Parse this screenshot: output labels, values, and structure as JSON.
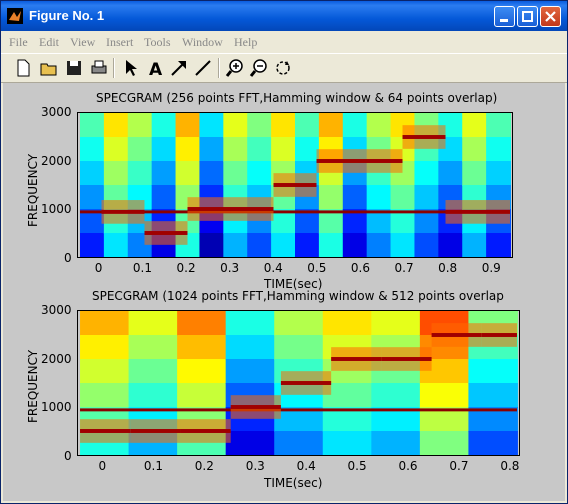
{
  "window": {
    "title": "Figure No. 1"
  },
  "menu": [
    "File",
    "Edit",
    "View",
    "Insert",
    "Tools",
    "Window",
    "Help"
  ],
  "toolbar": [
    "new-figure",
    "open",
    "save",
    "print",
    "edit-plot",
    "insert-text",
    "insert-arrow",
    "insert-line",
    "zoom-in",
    "zoom-out",
    "rotate-3d"
  ],
  "chart_data": [
    {
      "type": "heatmap",
      "title": "SPECGRAM (256 points FFT,Hamming window & 64 points overlap)",
      "xlabel": "TIME(sec)",
      "ylabel": "FREQUENCY",
      "xlim": [
        -0.05,
        0.95
      ],
      "ylim": [
        0,
        3000
      ],
      "xticks": [
        "0",
        "0.1",
        "0.2",
        "0.3",
        "0.4",
        "0.5",
        "0.6",
        "0.7",
        "0.8",
        "0.9"
      ],
      "yticks": [
        "0",
        "1000",
        "2000",
        "3000"
      ],
      "segments": [
        {
          "start": 0.0,
          "end": 0.1,
          "freq": 940
        },
        {
          "start": 0.1,
          "end": 0.2,
          "freq": 500
        },
        {
          "start": 0.2,
          "end": 0.3,
          "freq": 1000
        },
        {
          "start": 0.3,
          "end": 0.4,
          "freq": 1000
        },
        {
          "start": 0.4,
          "end": 0.5,
          "freq": 1500
        },
        {
          "start": 0.5,
          "end": 0.6,
          "freq": 2000
        },
        {
          "start": 0.6,
          "end": 0.7,
          "freq": 2000
        },
        {
          "start": 0.7,
          "end": 0.8,
          "freq": 2500
        },
        {
          "start": 0.8,
          "end": 0.95,
          "freq": 940
        }
      ],
      "background_tone_hz": 940
    },
    {
      "type": "heatmap",
      "title": "SPECGRAM (1024 points FFT,Hamming window & 512 points overlap",
      "xlabel": "TIME(sec)",
      "ylabel": "FREQUENCY",
      "xlim": [
        -0.05,
        0.82
      ],
      "ylim": [
        0,
        3000
      ],
      "xticks": [
        "0",
        "0.1",
        "0.2",
        "0.3",
        "0.4",
        "0.5",
        "0.6",
        "0.7",
        "0.8"
      ],
      "yticks": [
        "0",
        "1000",
        "2000",
        "3000"
      ],
      "segments": [
        {
          "start": -0.05,
          "end": 0.05,
          "freq": 500
        },
        {
          "start": 0.05,
          "end": 0.15,
          "freq": 500
        },
        {
          "start": 0.15,
          "end": 0.25,
          "freq": 500
        },
        {
          "start": 0.25,
          "end": 0.35,
          "freq": 1000
        },
        {
          "start": 0.35,
          "end": 0.45,
          "freq": 1500
        },
        {
          "start": 0.45,
          "end": 0.55,
          "freq": 2000
        },
        {
          "start": 0.55,
          "end": 0.65,
          "freq": 2000
        },
        {
          "start": 0.65,
          "end": 0.75,
          "freq": 2500
        },
        {
          "start": 0.75,
          "end": 0.82,
          "freq": 2500
        }
      ],
      "background_tone_hz": 940
    }
  ]
}
